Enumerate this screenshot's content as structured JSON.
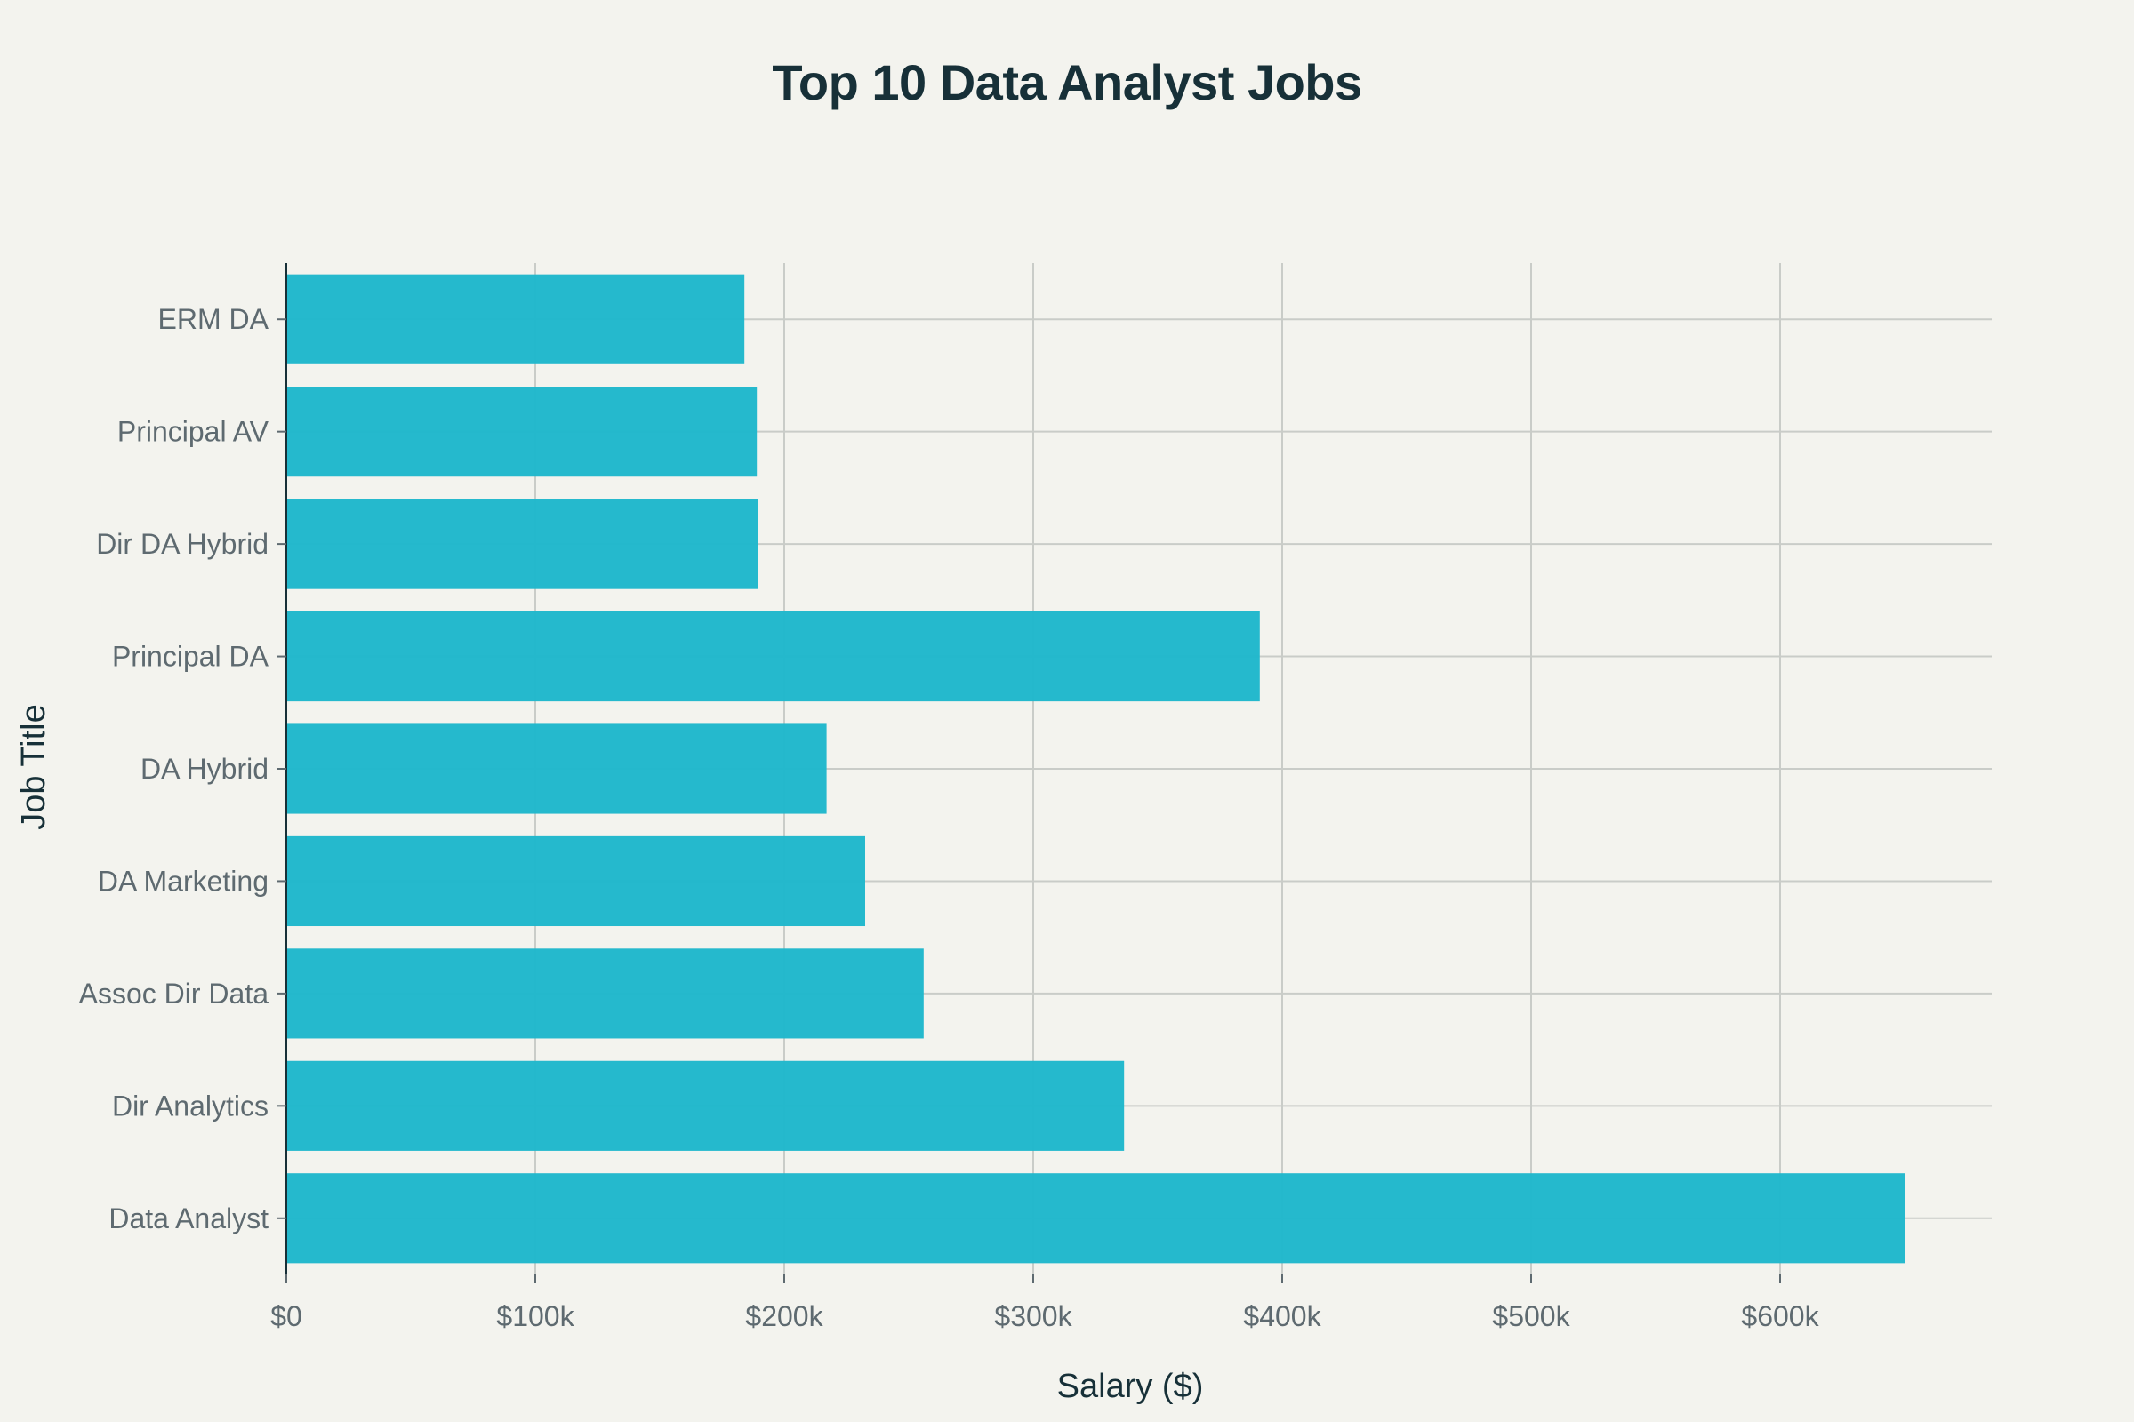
{
  "chart_data": {
    "type": "bar",
    "orientation": "horizontal",
    "title": "Top 10 Data Analyst Jobs",
    "xlabel": "Salary ($)",
    "ylabel": "Job Title",
    "categories": [
      "ERM DA",
      "Principal AV",
      "Dir DA Hybrid",
      "Principal DA",
      "DA Hybrid",
      "DA Marketing",
      "Assoc Dir Data",
      "Dir Analytics",
      "Data Analyst"
    ],
    "values": [
      184000,
      189000,
      189500,
      391000,
      217000,
      232500,
      256000,
      336500,
      650000
    ],
    "xlim": [
      0,
      685000
    ],
    "x_ticks": [
      0,
      100000,
      200000,
      300000,
      400000,
      500000,
      600000
    ],
    "x_tick_labels": [
      "$0",
      "$100k",
      "$200k",
      "$300k",
      "$400k",
      "$500k",
      "$600k"
    ],
    "grid": true,
    "bar_color": "#21b8cc",
    "background_color": "#f3f3ee",
    "title_color": "#173038"
  }
}
